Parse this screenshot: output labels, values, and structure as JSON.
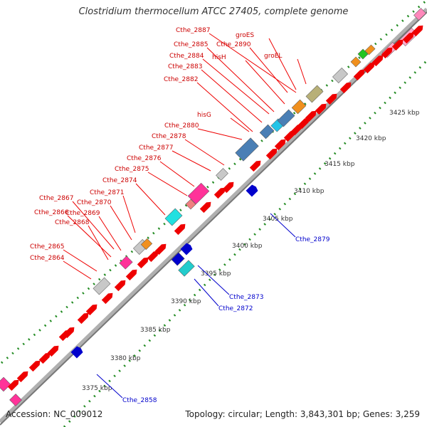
{
  "title": "Clostridium thermocellum ATCC 27405, complete genome",
  "accession": "Accession: NC_009012",
  "summary": "Topology: circular; Length: 3,843,301 bp; Genes: 3,259",
  "scale": {
    "unit": "kbp",
    "ticks": [
      "3375 kbp",
      "3380 kbp",
      "3385 kbp",
      "3390 kbp",
      "3395 kbp",
      "3400 kbp",
      "3405 kbp",
      "3410 kbp",
      "3415 kbp",
      "3420 kbp",
      "3425 kbp"
    ]
  },
  "colors": {
    "backbone": "#999999",
    "cds": "#ee0000",
    "label_top": "#cc0000",
    "label_bottom": "#0000cc",
    "dotted_track": "#228b22"
  },
  "top_labels": [
    {
      "label": "Cthe_2864"
    },
    {
      "label": "Cthe_2865"
    },
    {
      "label": "Cthe_2866"
    },
    {
      "label": "Cthe_2867"
    },
    {
      "label": "Cthe_2868"
    },
    {
      "label": "Cthe_2869"
    },
    {
      "label": "Cthe_2870"
    },
    {
      "label": "Cthe_2871"
    },
    {
      "label": "Cthe_2874"
    },
    {
      "label": "Cthe_2875"
    },
    {
      "label": "Cthe_2876"
    },
    {
      "label": "Cthe_2877"
    },
    {
      "label": "Cthe_2878"
    },
    {
      "label": "Cthe_2880"
    },
    {
      "label": "hisG"
    },
    {
      "label": "Cthe_2882"
    },
    {
      "label": "Cthe_2883"
    },
    {
      "label": "Cthe_2884"
    },
    {
      "label": "Cthe_2885"
    },
    {
      "label": "hisH"
    },
    {
      "label": "Cthe_2887"
    },
    {
      "label": "Cthe_2890"
    },
    {
      "label": "groES"
    },
    {
      "label": "groEL"
    }
  ],
  "bottom_labels": [
    {
      "label": "Cthe_2858"
    },
    {
      "label": "Cthe_2872"
    },
    {
      "label": "Cthe_2873"
    },
    {
      "label": "Cthe_2879"
    }
  ]
}
